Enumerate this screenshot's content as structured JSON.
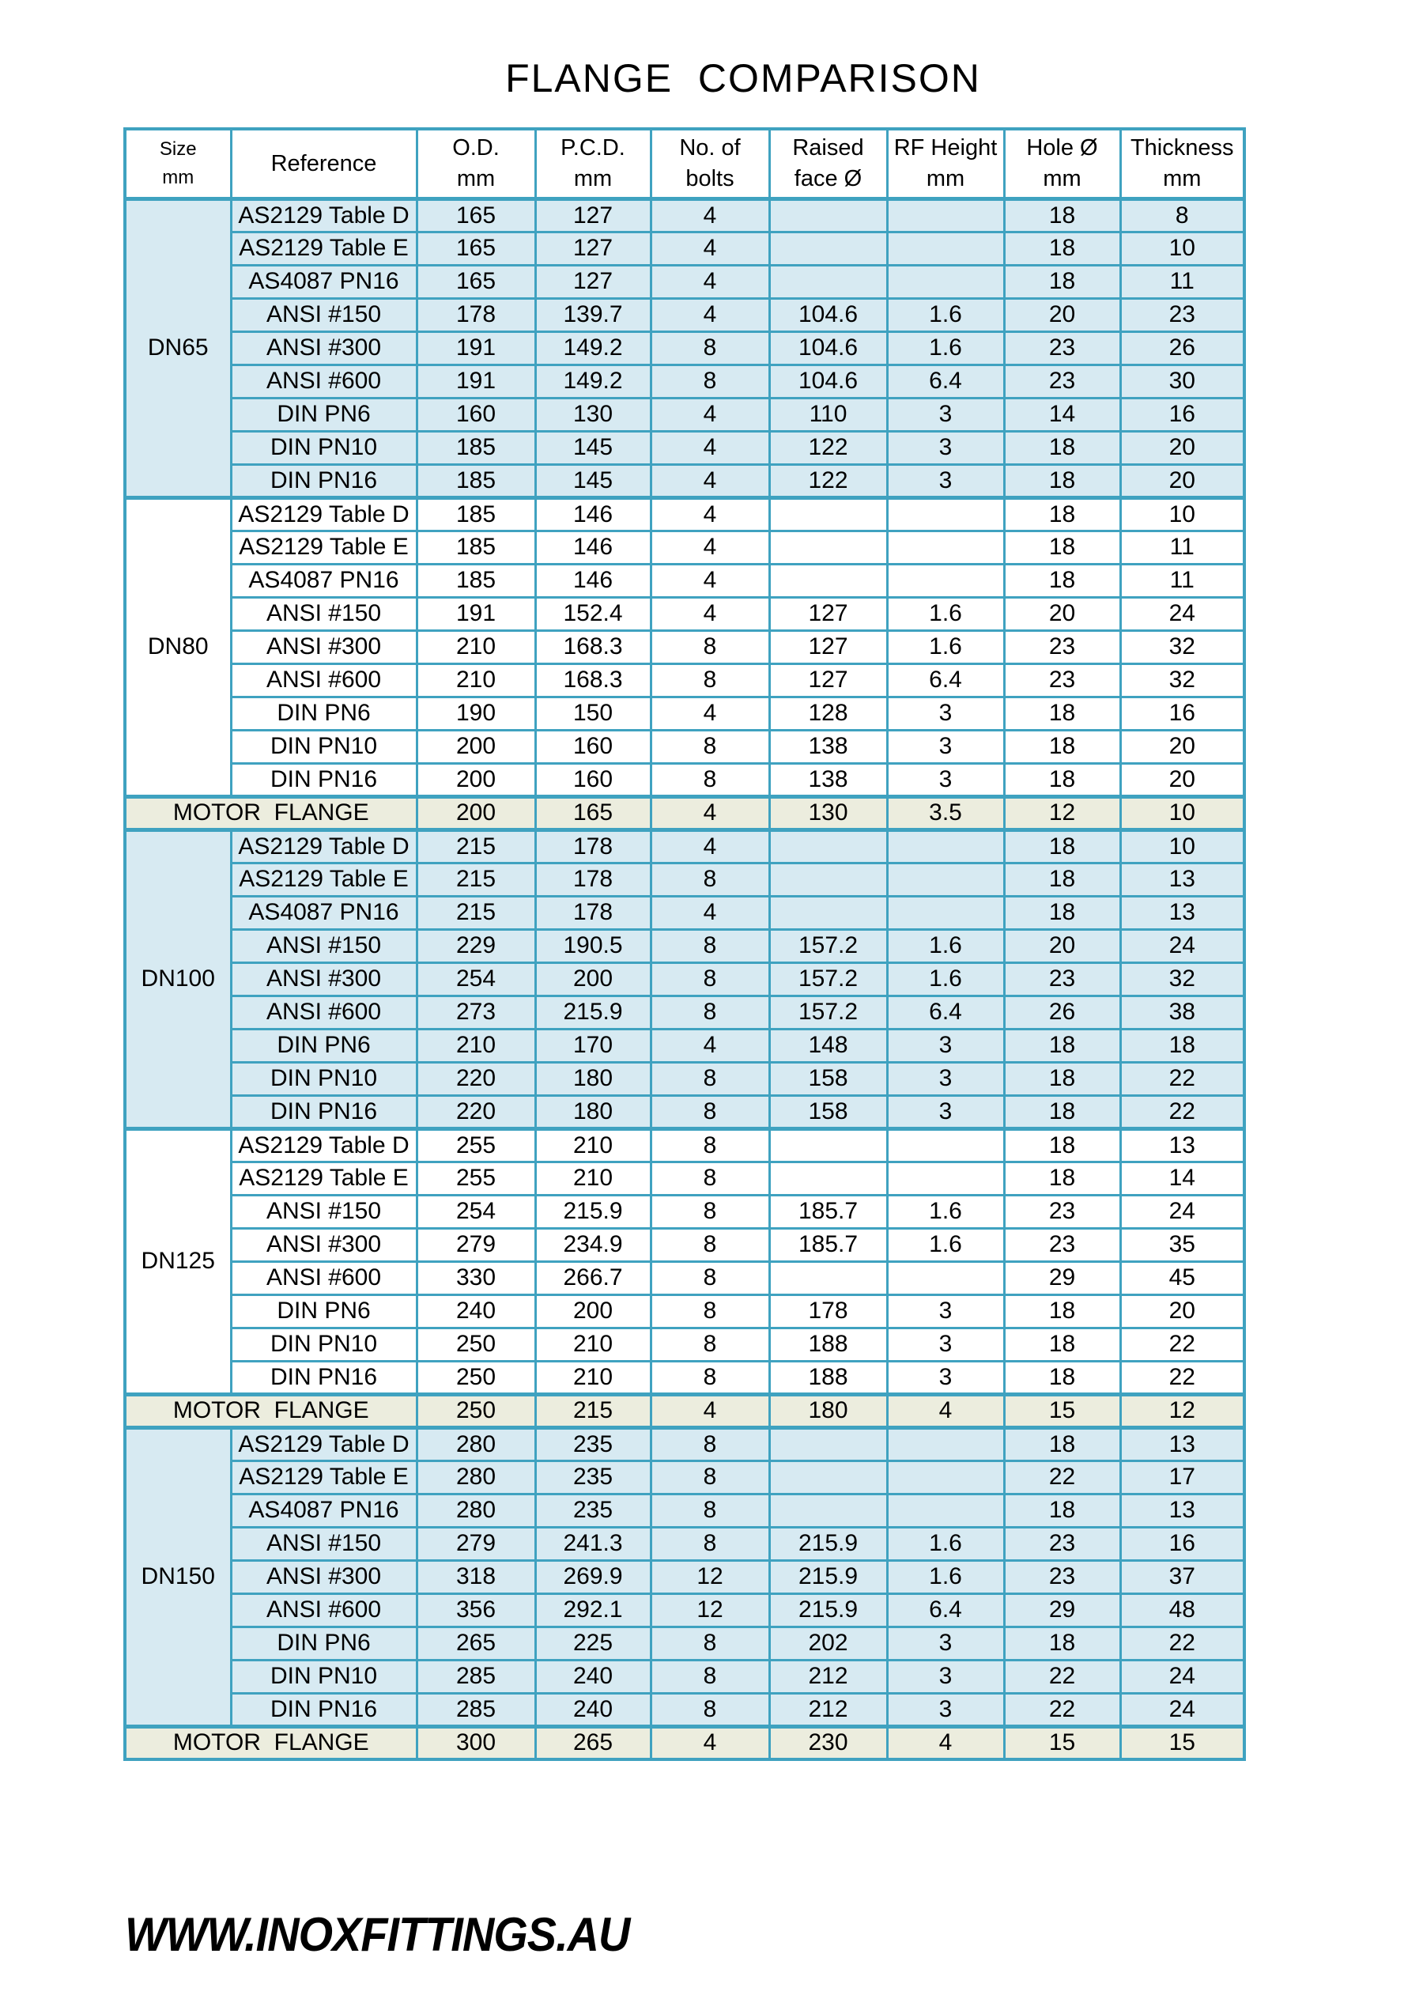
{
  "title": "FLANGE  COMPARISON",
  "footer": "WWW.INOXFITTINGS.AU",
  "colors": {
    "border_teal": "#3fa2c0",
    "light_blue_fill": "#d7eaf2",
    "beige_fill": "#ecedde",
    "white_fill": "#ffffff"
  },
  "table": {
    "headers": [
      {
        "key": "size",
        "line1": "Size",
        "line2": "mm",
        "small": true
      },
      {
        "key": "reference",
        "line1": "Reference",
        "line2": ""
      },
      {
        "key": "od",
        "line1": "O.D.",
        "line2": "mm"
      },
      {
        "key": "pcd",
        "line1": "P.C.D.",
        "line2": "mm"
      },
      {
        "key": "bolts",
        "line1": "No. of",
        "line2": "bolts"
      },
      {
        "key": "raised-face",
        "line1": "Raised",
        "line2": "face Ø"
      },
      {
        "key": "rf-height",
        "line1": "RF Height",
        "line2": "mm"
      },
      {
        "key": "hole",
        "line1": "Hole Ø",
        "line2": "mm"
      },
      {
        "key": "thickness",
        "line1": "Thickness",
        "line2": "mm"
      }
    ],
    "groups": [
      {
        "size": "DN65",
        "shade": "blue",
        "rows": [
          [
            "AS2129 Table D",
            "165",
            "127",
            "4",
            "",
            "",
            "18",
            "8"
          ],
          [
            "AS2129 Table E",
            "165",
            "127",
            "4",
            "",
            "",
            "18",
            "10"
          ],
          [
            "AS4087 PN16",
            "165",
            "127",
            "4",
            "",
            "",
            "18",
            "11"
          ],
          [
            "ANSI #150",
            "178",
            "139.7",
            "4",
            "104.6",
            "1.6",
            "20",
            "23"
          ],
          [
            "ANSI #300",
            "191",
            "149.2",
            "8",
            "104.6",
            "1.6",
            "23",
            "26"
          ],
          [
            "ANSI #600",
            "191",
            "149.2",
            "8",
            "104.6",
            "6.4",
            "23",
            "30"
          ],
          [
            "DIN PN6",
            "160",
            "130",
            "4",
            "110",
            "3",
            "14",
            "16"
          ],
          [
            "DIN PN10",
            "185",
            "145",
            "4",
            "122",
            "3",
            "18",
            "20"
          ],
          [
            "DIN PN16",
            "185",
            "145",
            "4",
            "122",
            "3",
            "18",
            "20"
          ]
        ]
      },
      {
        "size": "DN80",
        "shade": "white",
        "rows": [
          [
            "AS2129 Table D",
            "185",
            "146",
            "4",
            "",
            "",
            "18",
            "10"
          ],
          [
            "AS2129 Table E",
            "185",
            "146",
            "4",
            "",
            "",
            "18",
            "11"
          ],
          [
            "AS4087 PN16",
            "185",
            "146",
            "4",
            "",
            "",
            "18",
            "11"
          ],
          [
            "ANSI #150",
            "191",
            "152.4",
            "4",
            "127",
            "1.6",
            "20",
            "24"
          ],
          [
            "ANSI #300",
            "210",
            "168.3",
            "8",
            "127",
            "1.6",
            "23",
            "32"
          ],
          [
            "ANSI #600",
            "210",
            "168.3",
            "8",
            "127",
            "6.4",
            "23",
            "32"
          ],
          [
            "DIN PN6",
            "190",
            "150",
            "4",
            "128",
            "3",
            "18",
            "16"
          ],
          [
            "DIN PN10",
            "200",
            "160",
            "8",
            "138",
            "3",
            "18",
            "20"
          ],
          [
            "DIN PN16",
            "200",
            "160",
            "8",
            "138",
            "3",
            "18",
            "20"
          ]
        ]
      },
      {
        "motor": true,
        "label": "MOTOR  FLANGE",
        "values": [
          "200",
          "165",
          "4",
          "130",
          "3.5",
          "12",
          "10"
        ]
      },
      {
        "size": "DN100",
        "shade": "blue",
        "rows": [
          [
            "AS2129 Table D",
            "215",
            "178",
            "4",
            "",
            "",
            "18",
            "10"
          ],
          [
            "AS2129 Table E",
            "215",
            "178",
            "8",
            "",
            "",
            "18",
            "13"
          ],
          [
            "AS4087 PN16",
            "215",
            "178",
            "4",
            "",
            "",
            "18",
            "13"
          ],
          [
            "ANSI #150",
            "229",
            "190.5",
            "8",
            "157.2",
            "1.6",
            "20",
            "24"
          ],
          [
            "ANSI #300",
            "254",
            "200",
            "8",
            "157.2",
            "1.6",
            "23",
            "32"
          ],
          [
            "ANSI #600",
            "273",
            "215.9",
            "8",
            "157.2",
            "6.4",
            "26",
            "38"
          ],
          [
            "DIN PN6",
            "210",
            "170",
            "4",
            "148",
            "3",
            "18",
            "18"
          ],
          [
            "DIN PN10",
            "220",
            "180",
            "8",
            "158",
            "3",
            "18",
            "22"
          ],
          [
            "DIN PN16",
            "220",
            "180",
            "8",
            "158",
            "3",
            "18",
            "22"
          ]
        ]
      },
      {
        "size": "DN125",
        "shade": "white",
        "rows": [
          [
            "AS2129 Table D",
            "255",
            "210",
            "8",
            "",
            "",
            "18",
            "13"
          ],
          [
            "AS2129 Table E",
            "255",
            "210",
            "8",
            "",
            "",
            "18",
            "14"
          ],
          [
            "ANSI #150",
            "254",
            "215.9",
            "8",
            "185.7",
            "1.6",
            "23",
            "24"
          ],
          [
            "ANSI #300",
            "279",
            "234.9",
            "8",
            "185.7",
            "1.6",
            "23",
            "35"
          ],
          [
            "ANSI #600",
            "330",
            "266.7",
            "8",
            "",
            "",
            "29",
            "45"
          ],
          [
            "DIN PN6",
            "240",
            "200",
            "8",
            "178",
            "3",
            "18",
            "20"
          ],
          [
            "DIN PN10",
            "250",
            "210",
            "8",
            "188",
            "3",
            "18",
            "22"
          ],
          [
            "DIN PN16",
            "250",
            "210",
            "8",
            "188",
            "3",
            "18",
            "22"
          ]
        ]
      },
      {
        "motor": true,
        "label": "MOTOR  FLANGE",
        "values": [
          "250",
          "215",
          "4",
          "180",
          "4",
          "15",
          "12"
        ]
      },
      {
        "size": "DN150",
        "shade": "blue",
        "rows": [
          [
            "AS2129 Table D",
            "280",
            "235",
            "8",
            "",
            "",
            "18",
            "13"
          ],
          [
            "AS2129 Table E",
            "280",
            "235",
            "8",
            "",
            "",
            "22",
            "17"
          ],
          [
            "AS4087 PN16",
            "280",
            "235",
            "8",
            "",
            "",
            "18",
            "13"
          ],
          [
            "ANSI #150",
            "279",
            "241.3",
            "8",
            "215.9",
            "1.6",
            "23",
            "16"
          ],
          [
            "ANSI #300",
            "318",
            "269.9",
            "12",
            "215.9",
            "1.6",
            "23",
            "37"
          ],
          [
            "ANSI #600",
            "356",
            "292.1",
            "12",
            "215.9",
            "6.4",
            "29",
            "48"
          ],
          [
            "DIN PN6",
            "265",
            "225",
            "8",
            "202",
            "3",
            "18",
            "22"
          ],
          [
            "DIN PN10",
            "285",
            "240",
            "8",
            "212",
            "3",
            "22",
            "24"
          ],
          [
            "DIN PN16",
            "285",
            "240",
            "8",
            "212",
            "3",
            "22",
            "24"
          ]
        ]
      },
      {
        "motor": true,
        "label": "MOTOR  FLANGE",
        "values": [
          "300",
          "265",
          "4",
          "230",
          "4",
          "15",
          "15"
        ]
      }
    ]
  }
}
